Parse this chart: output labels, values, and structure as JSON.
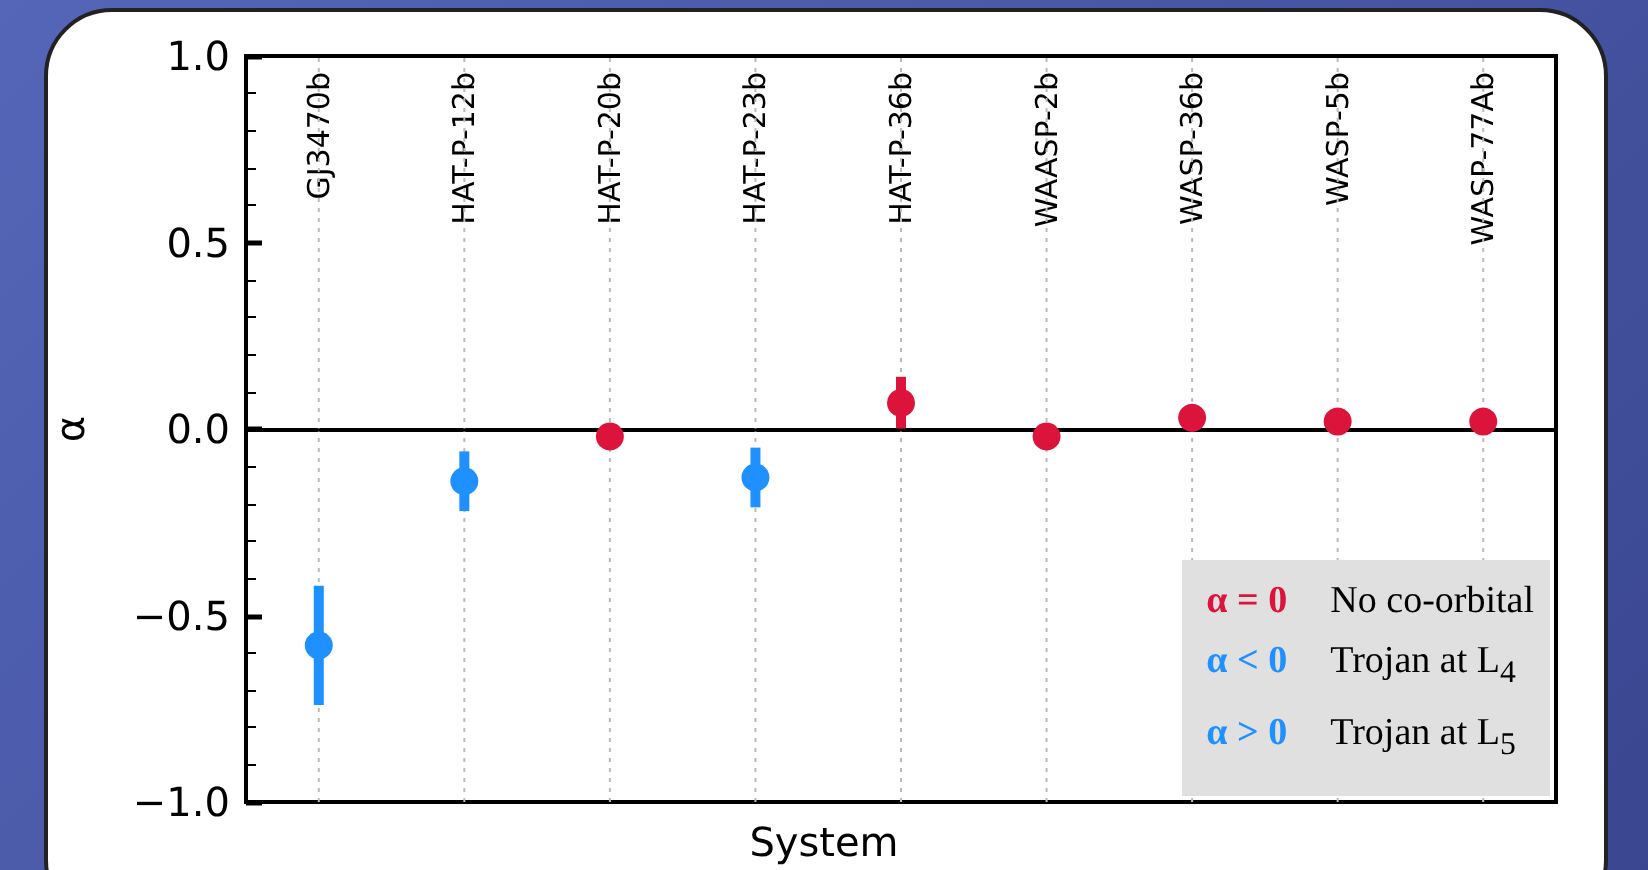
{
  "chart_data": {
    "type": "scatter",
    "xlabel": "System",
    "ylabel": "α",
    "categories": [
      "GJ3470b",
      "HAT-P-12b",
      "HAT-P-20b",
      "HAT-P-23b",
      "HAT-P-36b",
      "WAASP-2b",
      "WASP-36b",
      "WASP-5b",
      "WASP-77Ab"
    ],
    "series": [
      {
        "name": "α = 0",
        "color": "#dc143c",
        "values": [
          null,
          null,
          -0.02,
          null,
          0.07,
          -0.02,
          0.03,
          0.02,
          0.02
        ],
        "errors": [
          null,
          null,
          null,
          null,
          0.07,
          null,
          null,
          null,
          null
        ]
      },
      {
        "name": "α < 0",
        "color": "#1e90ff",
        "values": [
          -0.58,
          -0.14,
          null,
          -0.13,
          null,
          null,
          null,
          null,
          null
        ],
        "errors": [
          0.16,
          0.08,
          null,
          0.08,
          null,
          null,
          null,
          null,
          null
        ]
      },
      {
        "name": "α > 0",
        "color": "#1e90ff",
        "values": [
          null,
          null,
          null,
          null,
          null,
          null,
          null,
          null,
          null
        ]
      }
    ],
    "annotations": [
      "No co-orbital",
      "Trojan at L$_{4}$",
      "Trojan at L$_{5}$"
    ],
    "ylim": [
      -1.0,
      1.0
    ],
    "yticks": [
      {
        "value": -1.0,
        "label": "−1.0"
      },
      {
        "value": -0.5,
        "label": "−0.5"
      },
      {
        "value": 0.0,
        "label": "0.0"
      },
      {
        "value": 0.5,
        "label": "0.5"
      },
      {
        "value": 1.0,
        "label": "1.0"
      }
    ],
    "ref_lines": [
      {
        "axis": "y",
        "value": 0,
        "color": "#000000"
      }
    ],
    "grid": "x",
    "legend": "bottom right",
    "marker": "circle"
  }
}
